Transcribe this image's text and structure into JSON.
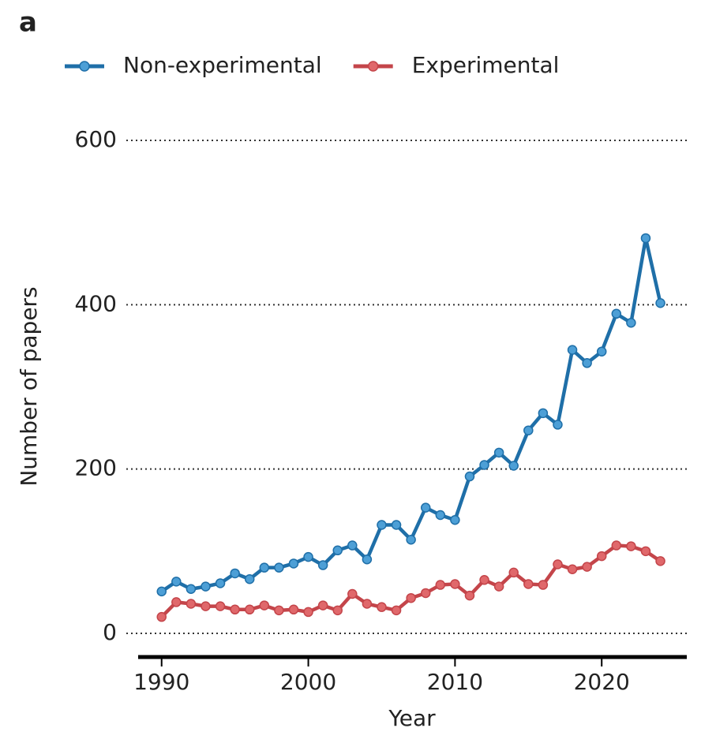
{
  "chart_data": {
    "type": "line",
    "panel_label": "a",
    "x_label": "Year",
    "y_label": "Number of papers",
    "x": [
      1990,
      1991,
      1992,
      1993,
      1994,
      1995,
      1996,
      1997,
      1998,
      1999,
      2000,
      2001,
      2002,
      2003,
      2004,
      2005,
      2006,
      2007,
      2008,
      2009,
      2010,
      2011,
      2012,
      2013,
      2014,
      2015,
      2016,
      2017,
      2018,
      2019,
      2020,
      2021,
      2022,
      2023,
      2024
    ],
    "series": [
      {
        "name": "Non-experimental",
        "color": "#1f6fa8",
        "marker_color": "#4d9fd6",
        "values": [
          51,
          63,
          54,
          57,
          61,
          73,
          66,
          80,
          80,
          85,
          93,
          83,
          101,
          107,
          90,
          132,
          132,
          114,
          153,
          144,
          138,
          191,
          205,
          220,
          204,
          247,
          268,
          254,
          345,
          329,
          343,
          389,
          378,
          481,
          402
        ]
      },
      {
        "name": "Experimental",
        "color": "#c4454a",
        "marker_color": "#e0686b",
        "values": [
          20,
          38,
          36,
          33,
          33,
          29,
          29,
          34,
          28,
          29,
          26,
          34,
          28,
          48,
          36,
          32,
          28,
          43,
          49,
          59,
          60,
          46,
          65,
          57,
          74,
          60,
          59,
          84,
          78,
          81,
          94,
          107,
          106,
          100,
          88
        ]
      }
    ],
    "xlim": [
      1988.4,
      2025.8
    ],
    "xticks": [
      1990,
      2000,
      2010,
      2020
    ],
    "ylim": [
      0,
      600
    ],
    "yticks": [
      0,
      200,
      400,
      600
    ],
    "grid": true
  }
}
